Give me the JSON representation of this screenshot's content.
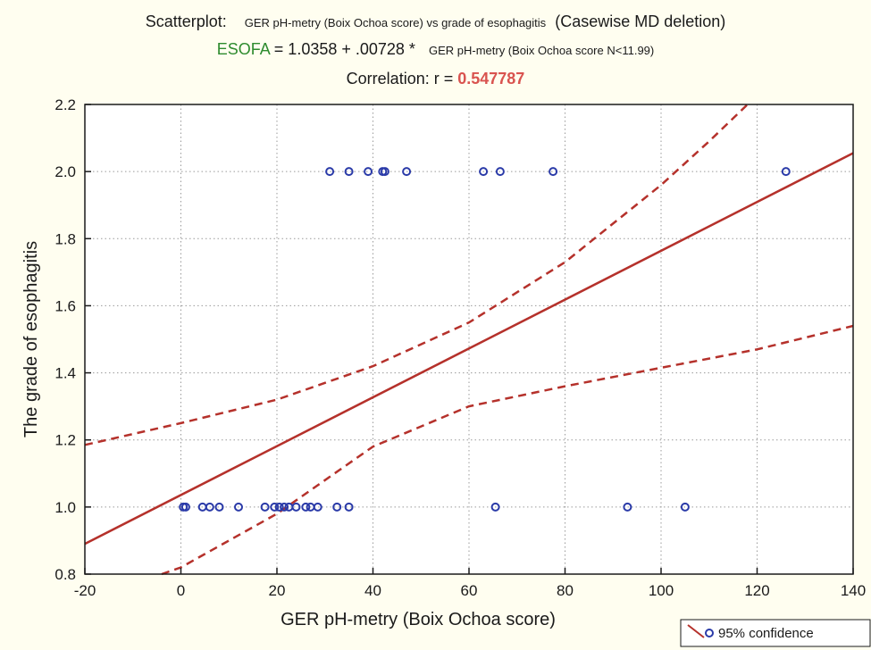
{
  "header": {
    "label": "Scatterplot:",
    "subtitle": "GER pH-metry (Boix Ochoa score) vs grade of esophagitis",
    "deletion_note": "(Casewise MD deletion)",
    "equation_dependent": "ESOFA",
    "equation_body": " = 1.0358 + .00728 * ",
    "equation_independent": "GER pH-metry (Boix Ochoa score N<11.99)",
    "correlation_label": "Correlation: r = ",
    "correlation_value": "0.547787"
  },
  "colors": {
    "background": "#fffef0",
    "plot_area": "#ffffff",
    "regression_line": "#b5312b",
    "points": "#2a3aa8",
    "grid": "#9a9a9a",
    "equation_dependent": "#2e8b2e",
    "correlation_value": "#d9534f"
  },
  "chart_data": {
    "type": "scatter",
    "xlabel": "GER pH-metry (Boix Ochoa score)",
    "ylabel": "The grade of esophagitis",
    "xlim": [
      -20,
      140
    ],
    "ylim": [
      0.8,
      2.2
    ],
    "xticks": [
      -20,
      0,
      20,
      40,
      60,
      80,
      100,
      120,
      140
    ],
    "yticks": [
      0.8,
      1.0,
      1.2,
      1.4,
      1.6,
      1.8,
      2.0,
      2.2
    ],
    "xtick_labels": [
      "-20",
      "0",
      "20",
      "40",
      "60",
      "80",
      "100",
      "120",
      "140"
    ],
    "ytick_labels": [
      "0.8",
      "1.0",
      "1.2",
      "1.4",
      "1.6",
      "1.8",
      "2.0",
      "2.2"
    ],
    "grid": true,
    "regression": {
      "intercept": 1.0358,
      "slope": 0.00728
    },
    "confidence_band": {
      "level": "95%",
      "upper": [
        [
          -20,
          1.185
        ],
        [
          0,
          1.25
        ],
        [
          20,
          1.32
        ],
        [
          40,
          1.42
        ],
        [
          60,
          1.55
        ],
        [
          80,
          1.73
        ],
        [
          100,
          1.96
        ],
        [
          110,
          2.09
        ],
        [
          118,
          2.2
        ]
      ],
      "lower": [
        [
          -4,
          0.8
        ],
        [
          0,
          0.82
        ],
        [
          20,
          0.98
        ],
        [
          40,
          1.18
        ],
        [
          60,
          1.3
        ],
        [
          80,
          1.36
        ],
        [
          100,
          1.415
        ],
        [
          120,
          1.47
        ],
        [
          140,
          1.54
        ]
      ]
    },
    "legend": {
      "label": "95% confidence",
      "position": "bottom-right"
    },
    "points": [
      [
        0.5,
        1.0
      ],
      [
        1,
        1.0
      ],
      [
        4.5,
        1.0
      ],
      [
        6,
        1.0
      ],
      [
        8,
        1.0
      ],
      [
        12,
        1.0
      ],
      [
        17.5,
        1.0
      ],
      [
        19.5,
        1.0
      ],
      [
        20.5,
        1.0
      ],
      [
        21.5,
        1.0
      ],
      [
        22.5,
        1.0
      ],
      [
        24,
        1.0
      ],
      [
        26,
        1.0
      ],
      [
        27,
        1.0
      ],
      [
        28.5,
        1.0
      ],
      [
        32.5,
        1.0
      ],
      [
        35,
        1.0
      ],
      [
        65.5,
        1.0
      ],
      [
        93,
        1.0
      ],
      [
        105,
        1.0
      ],
      [
        31,
        2.0
      ],
      [
        35,
        2.0
      ],
      [
        39,
        2.0
      ],
      [
        42,
        2.0
      ],
      [
        42.5,
        2.0
      ],
      [
        47,
        2.0
      ],
      [
        63,
        2.0
      ],
      [
        66.5,
        2.0
      ],
      [
        77.5,
        2.0
      ],
      [
        126,
        2.0
      ]
    ]
  }
}
